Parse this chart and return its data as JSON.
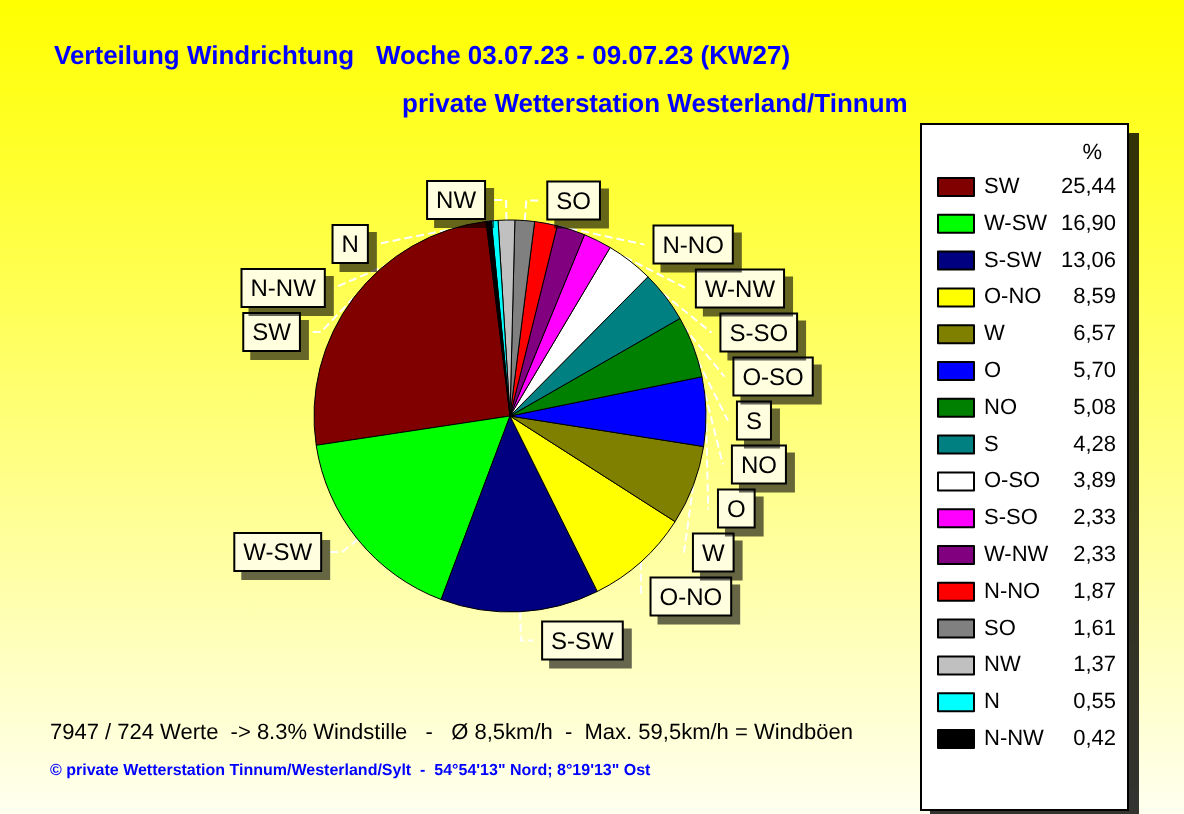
{
  "chart_data": {
    "type": "pie",
    "title": "Verteilung Windrichtung   Woche 03.07.23 - 09.07.23 (KW27)",
    "subtitle": "private Wetterstation Westerland/Tinnum",
    "legend_title": "%",
    "legend": "right",
    "categories": [
      "SW",
      "W-SW",
      "S-SW",
      "O-NO",
      "W",
      "O",
      "NO",
      "S",
      "O-SO",
      "S-SO",
      "W-NW",
      "N-NO",
      "SO",
      "NW",
      "N",
      "N-NW"
    ],
    "values": [
      25.44,
      16.9,
      13.06,
      8.59,
      6.57,
      5.7,
      5.08,
      4.28,
      3.89,
      2.33,
      2.33,
      1.87,
      1.61,
      1.37,
      0.55,
      0.42
    ],
    "value_labels": [
      "25,44",
      "16,90",
      "13,06",
      "8,59",
      "6,57",
      "5,70",
      "5,08",
      "4,28",
      "3,89",
      "2,33",
      "2,33",
      "1,87",
      "1,61",
      "1,37",
      "0,55",
      "0,42"
    ],
    "colors": [
      "#800000",
      "#00ff00",
      "#000080",
      "#ffff00",
      "#808000",
      "#0000ff",
      "#008000",
      "#008080",
      "#ffffff",
      "#ff00ff",
      "#800080",
      "#ff0000",
      "#808080",
      "#c0c0c0",
      "#00ffff",
      "#000000"
    ],
    "annotations": [
      "7947 / 724 Werte  -> 8.3% Windstille   -   Ø 8,5km/h  -  Max. 59,5km/h = Windböen",
      "© private Wetterstation Tinnum/Westerland/Sylt  -  54°54'13\" Nord; 8°19'13\" Ost"
    ]
  }
}
